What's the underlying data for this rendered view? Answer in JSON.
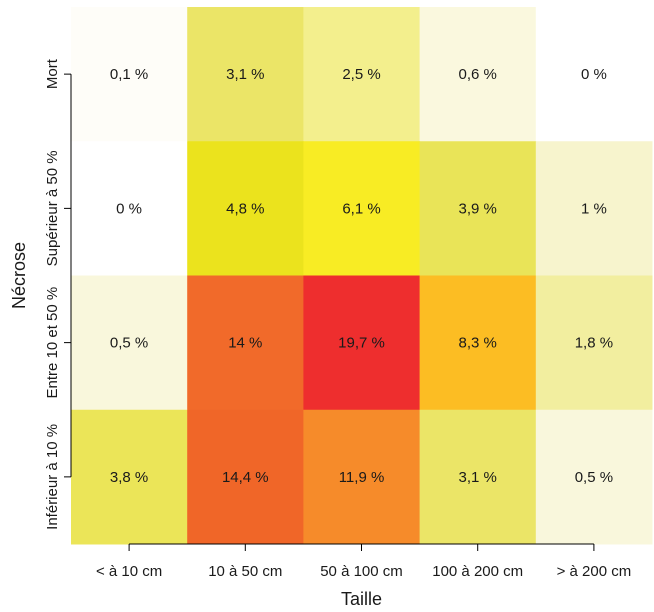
{
  "chart_data": {
    "type": "heatmap",
    "xlabel": "Taille",
    "ylabel": "Nécrose",
    "x_categories": [
      "< à 10 cm",
      "10 à 50 cm",
      "50 à 100 cm",
      "100 à 200 cm",
      "> à 200 cm"
    ],
    "y_categories": [
      "Mort",
      "Supérieur à 50 %",
      "Entre 10 et 50 %",
      "Inférieur à 10 %"
    ],
    "values": [
      [
        0.1,
        3.1,
        2.5,
        0.6,
        0
      ],
      [
        0,
        4.8,
        6.1,
        3.9,
        1
      ],
      [
        0.5,
        14,
        19.7,
        8.3,
        1.8
      ],
      [
        3.8,
        14.4,
        11.9,
        3.1,
        0.5
      ]
    ],
    "labels": [
      [
        "0,1 %",
        "3,1 %",
        "2,5 %",
        "0,6 %",
        "0 %"
      ],
      [
        "0 %",
        "4,8 %",
        "6,1 %",
        "3,9 %",
        "1 %"
      ],
      [
        "0,5 %",
        "14 %",
        "19,7 %",
        "8,3 %",
        "1,8 %"
      ],
      [
        "3,8 %",
        "14,4 %",
        "11,9 %",
        "3,1 %",
        "0,5 %"
      ]
    ],
    "colors": [
      [
        "#fefdf8",
        "#ebe567",
        "#f3ef8d",
        "#faf8de",
        "#ffffff"
      ],
      [
        "#ffffff",
        "#ebe31d",
        "#f8ec24",
        "#e9e458",
        "#f7f4cd"
      ],
      [
        "#f9f7dc",
        "#f16a2a",
        "#ee2e2e",
        "#fcbd23",
        "#f2ee9f"
      ],
      [
        "#ebe558",
        "#f06628",
        "#f68b2a",
        "#ebe567",
        "#f9f7dc"
      ]
    ],
    "grid": false,
    "legend": "none"
  }
}
